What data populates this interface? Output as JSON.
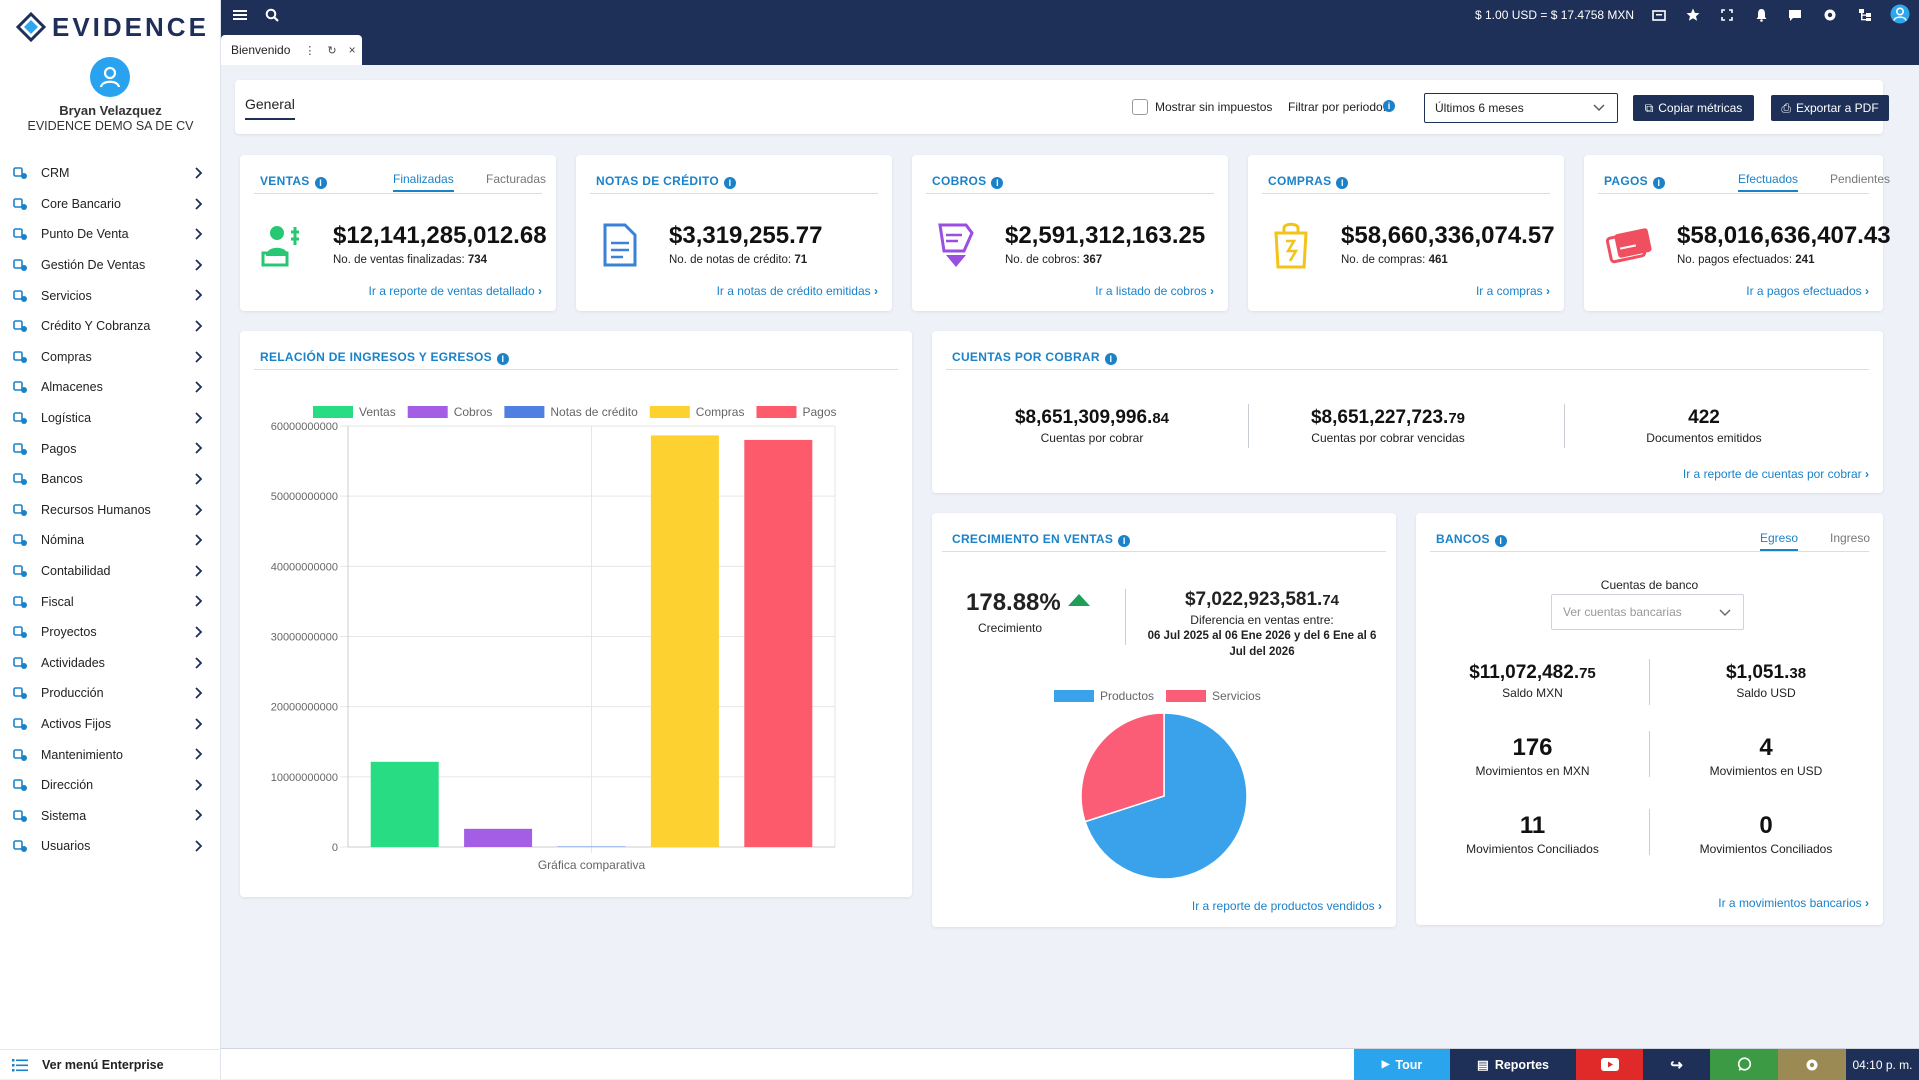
{
  "brand": {
    "name": "EVIDENCE"
  },
  "user": {
    "name": "Bryan Velazquez",
    "company": "EVIDENCE DEMO SA DE CV"
  },
  "menu": [
    {
      "label": "CRM",
      "icon": "crm-icon"
    },
    {
      "label": "Core Bancario",
      "icon": "core-bank-icon"
    },
    {
      "label": "Punto De Venta",
      "icon": "pos-icon"
    },
    {
      "label": "Gestión De Ventas",
      "icon": "sales-icon"
    },
    {
      "label": "Servicios",
      "icon": "services-icon"
    },
    {
      "label": "Crédito Y Cobranza",
      "icon": "credit-icon"
    },
    {
      "label": "Compras",
      "icon": "purchases-icon"
    },
    {
      "label": "Almacenes",
      "icon": "warehouse-icon"
    },
    {
      "label": "Logística",
      "icon": "logistics-icon"
    },
    {
      "label": "Pagos",
      "icon": "payments-icon"
    },
    {
      "label": "Bancos",
      "icon": "banks-icon"
    },
    {
      "label": "Recursos Humanos",
      "icon": "hr-icon"
    },
    {
      "label": "Nómina",
      "icon": "payroll-icon"
    },
    {
      "label": "Contabilidad",
      "icon": "accounting-icon"
    },
    {
      "label": "Fiscal",
      "icon": "fiscal-icon"
    },
    {
      "label": "Proyectos",
      "icon": "projects-icon"
    },
    {
      "label": "Actividades",
      "icon": "activities-icon"
    },
    {
      "label": "Producción",
      "icon": "production-icon"
    },
    {
      "label": "Activos Fijos",
      "icon": "fixed-assets-icon"
    },
    {
      "label": "Mantenimiento",
      "icon": "maintenance-icon"
    },
    {
      "label": "Dirección",
      "icon": "direction-icon"
    },
    {
      "label": "Sistema",
      "icon": "system-icon"
    },
    {
      "label": "Usuarios",
      "icon": "users-icon"
    }
  ],
  "enterprise_label": "Ver menú Enterprise",
  "topbar": {
    "rate": "$ 1.00 USD = $ 17.4758 MXN"
  },
  "tab": {
    "label": "Bienvenido"
  },
  "toolbar": {
    "section": "General",
    "checkbox_label": "Mostrar sin impuestos",
    "filter_label": "Filtrar por periodo:",
    "period_value": "Últimos 6 meses",
    "copy_label": "Copiar métricas",
    "export_label": "Exportar a PDF"
  },
  "kpis": {
    "ventas": {
      "title": "VENTAS",
      "tab1": "Finalizadas",
      "tab2": "Facturadas",
      "value": "$12,141,285,012.68",
      "sub_label": "No. de ventas finalizadas: ",
      "sub_value": "734",
      "link": "Ir a reporte de ventas detallado",
      "color": "#2ec27e"
    },
    "notas": {
      "title": "NOTAS DE CRÉDITO",
      "value": "$3,319,255.77",
      "sub_label": "No. de notas de crédito: ",
      "sub_value": "71",
      "link": "Ir a notas de crédito emitidas",
      "color": "#3b82d6"
    },
    "cobros": {
      "title": "COBROS",
      "value": "$2,591,312,163.25",
      "sub_label": "No. de cobros: ",
      "sub_value": "367",
      "link": "Ir a listado de cobros",
      "color": "#9b4fe0"
    },
    "compras": {
      "title": "COMPRAS",
      "value": "$58,660,336,074.57",
      "sub_label": "No. de compras: ",
      "sub_value": "461",
      "link": "Ir a compras",
      "color": "#f2c41a"
    },
    "pagos": {
      "title": "PAGOS",
      "tab1": "Efectuados",
      "tab2": "Pendientes",
      "value": "$58,016,636,407.43",
      "sub_label": "No. pagos efectuados: ",
      "sub_value": "241",
      "link": "Ir a pagos efectuados",
      "color": "#f04f5f"
    }
  },
  "relacion": {
    "title": "RELACIÓN DE INGRESOS Y EGRESOS"
  },
  "chart_data": [
    {
      "type": "bar",
      "categories": [
        "Gráfica comparativa"
      ],
      "series": [
        {
          "name": "Ventas",
          "values": [
            12141285012.68
          ],
          "color": "#27dc82"
        },
        {
          "name": "Cobros",
          "values": [
            2591312163.25
          ],
          "color": "#a45ee6"
        },
        {
          "name": "Notas de crédito",
          "values": [
            3319255.77
          ],
          "color": "#4f7fe0"
        },
        {
          "name": "Compras",
          "values": [
            58660336074.57
          ],
          "color": "#fdd130"
        },
        {
          "name": "Pagos",
          "values": [
            58016636407.43
          ],
          "color": "#fd5b6b"
        }
      ],
      "ylim": [
        0,
        60000000000
      ],
      "yticks": [
        "0",
        "10000000000",
        "20000000000",
        "30000000000",
        "40000000000",
        "50000000000",
        "60000000000"
      ],
      "xlabel": "Gráfica comparativa",
      "grid": true,
      "legend": "top"
    },
    {
      "type": "pie",
      "categories": [
        "Productos",
        "Servicios"
      ],
      "values": [
        70,
        30
      ],
      "colors": [
        "#3aa2ea",
        "#fb5d77"
      ],
      "legend": "top"
    }
  ],
  "cxc": {
    "title": "CUENTAS POR COBRAR",
    "a_main": "$8,651,309,996.",
    "a_dec": "84",
    "a_label": "Cuentas por cobrar",
    "b_main": "$8,651,227,723.",
    "b_dec": "79",
    "b_label": "Cuentas por cobrar vencidas",
    "c_val": "422",
    "c_label": "Documentos emitidos",
    "link": "Ir a reporte de cuentas por cobrar"
  },
  "crecimiento": {
    "title": "CRECIMIENTO EN VENTAS",
    "pct": "178.88%",
    "pct_label": "Crecimiento",
    "diff_main": "$7,022,923,581.",
    "diff_dec": "74",
    "diff_label": "Diferencia en ventas entre:",
    "diff_range": "06 Jul 2025 al 06 Ene 2026 y del 6 Ene al 6 Jul del 2026",
    "legend1": "Productos",
    "legend2": "Servicios",
    "link": "Ir a reporte de productos vendidos"
  },
  "bancos": {
    "title": "BANCOS",
    "tab1": "Egreso",
    "tab2": "Ingreso",
    "accounts_label": "Cuentas de banco",
    "accounts_placeholder": "Ver cuentas bancarias",
    "mxn_main": "$11,072,482.",
    "mxn_dec": "75",
    "mxn_label": "Saldo MXN",
    "usd_main": "$1,051.",
    "usd_dec": "38",
    "usd_label": "Saldo USD",
    "mov_mxn": "176",
    "mov_mxn_label": "Movimientos en MXN",
    "mov_usd": "4",
    "mov_usd_label": "Movimientos en USD",
    "conc1": "11",
    "conc1_label": "Movimientos Conciliados",
    "conc2": "0",
    "conc2_label": "Movimientos Conciliados",
    "link": "Ir a movimientos bancarios"
  },
  "bottom": {
    "tour": "Tour",
    "reportes": "Reportes",
    "time": "04:10 p. m."
  }
}
